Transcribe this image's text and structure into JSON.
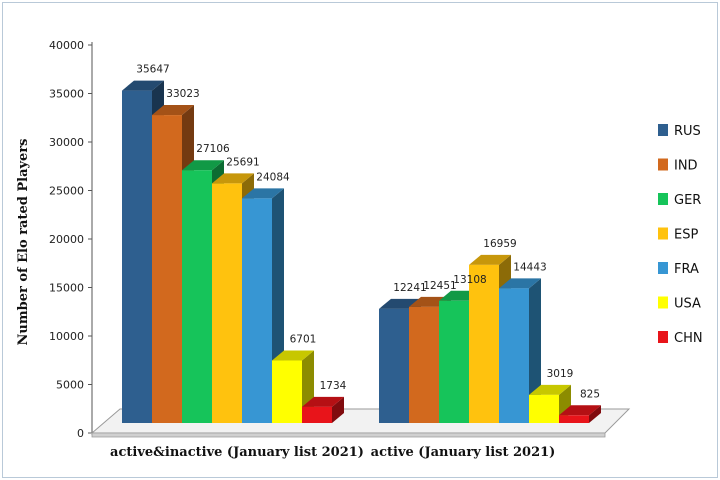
{
  "chart_data": {
    "type": "bar",
    "title": "",
    "xlabel": "",
    "ylabel": "Number of Elo rated Players",
    "ylim": [
      0,
      40000
    ],
    "yticks": [
      0,
      5000,
      10000,
      15000,
      20000,
      25000,
      30000,
      35000,
      40000
    ],
    "categories": [
      "active&inactive (January list 2021)",
      "active (January list 2021)"
    ],
    "series": [
      {
        "name": "RUS",
        "color": "#2e5f8f",
        "values": [
          35647,
          12241
        ]
      },
      {
        "name": "IND",
        "color": "#d2691e",
        "values": [
          33023,
          12451
        ]
      },
      {
        "name": "GER",
        "color": "#16c45a",
        "values": [
          27106,
          13108
        ]
      },
      {
        "name": "ESP",
        "color": "#ffc20e",
        "values": [
          25691,
          16959
        ]
      },
      {
        "name": "FRA",
        "color": "#3796d3",
        "values": [
          24084,
          14443
        ]
      },
      {
        "name": "USA",
        "color": "#ffff00",
        "values": [
          6701,
          3019
        ]
      },
      {
        "name": "CHN",
        "color": "#e8141a",
        "values": [
          1734,
          825
        ]
      }
    ],
    "legend_position": "right",
    "grid": false
  }
}
